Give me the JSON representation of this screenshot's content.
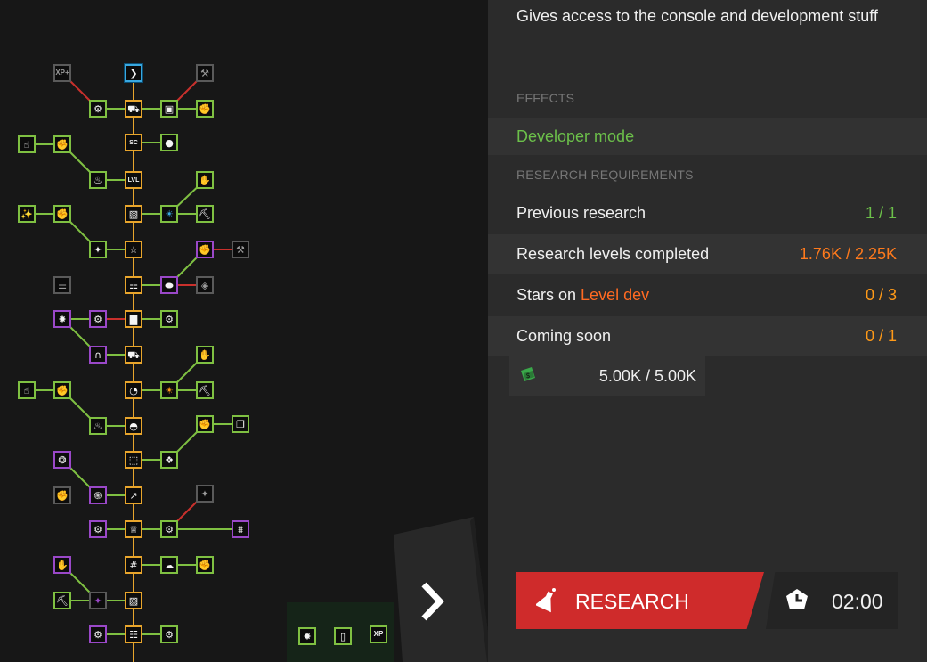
{
  "detail": {
    "subtitle": "Gives access to the console and development stuff",
    "effects_label": "EFFECTS",
    "effect": "Developer mode",
    "requirements_label": "RESEARCH REQUIREMENTS",
    "requirements": [
      {
        "name": "Previous research",
        "value": "1 / 1",
        "value_color": "#6cc04a"
      },
      {
        "name": "Research levels completed",
        "value": "1.76K / 2.25K",
        "value_color": "#ff7a1c"
      },
      {
        "name": "Stars on ",
        "highlight": "Level dev",
        "value": "0 / 3",
        "value_color": "#ff9a18"
      },
      {
        "name": "Coming soon",
        "value": "0 / 1",
        "value_color": "#ff9a18"
      }
    ],
    "cost": {
      "icon": "papers-icon",
      "value": "5.00K / 5.00K"
    },
    "research_button": {
      "label": "RESEARCH",
      "icon": "flask-icon",
      "color": "#cf2b2b"
    },
    "research_time": {
      "icon": "clock-icon",
      "value": "02:00"
    }
  },
  "colors": {
    "green": "#7fc042",
    "orange": "#e8a52c",
    "purple": "#9a48c8",
    "grey": "#5a5a5a",
    "selected": "#39a8e0"
  }
}
